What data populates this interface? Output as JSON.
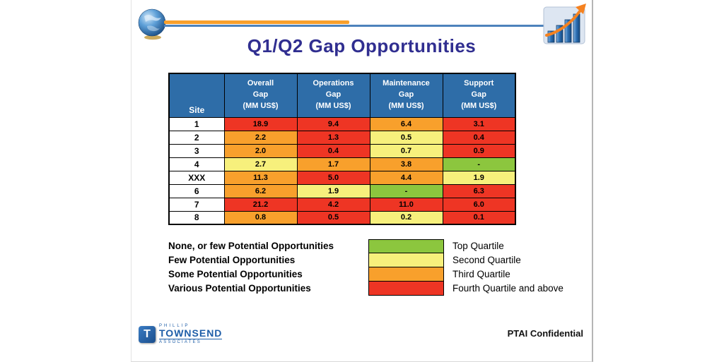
{
  "slide": {
    "title": "Q1/Q2 Gap Opportunities",
    "footer": {
      "confidential": "PTAI Confidential",
      "logo": {
        "letter": "T",
        "line1": "PHILLIP",
        "line2": "TOWNSEND",
        "line3": "ASSOCIATES"
      }
    }
  },
  "chart_data": {
    "type": "table",
    "title": "Q1/Q2 Gap Opportunities",
    "site_header": "Site",
    "columns": [
      "Overall\nGap\n(MM US$)",
      "Operations\nGap\n(MM US$)",
      "Maintenance\nGap\n(MM US$)",
      "Support\nGap\n(MM US$)"
    ],
    "rows": [
      {
        "site": "1",
        "cells": [
          {
            "value": "18.9",
            "color": "red"
          },
          {
            "value": "9.4",
            "color": "red"
          },
          {
            "value": "6.4",
            "color": "orange"
          },
          {
            "value": "3.1",
            "color": "red"
          }
        ]
      },
      {
        "site": "2",
        "cells": [
          {
            "value": "2.2",
            "color": "orange"
          },
          {
            "value": "1.3",
            "color": "red"
          },
          {
            "value": "0.5",
            "color": "yellow"
          },
          {
            "value": "0.4",
            "color": "red"
          }
        ]
      },
      {
        "site": "3",
        "cells": [
          {
            "value": "2.0",
            "color": "orange"
          },
          {
            "value": "0.4",
            "color": "red"
          },
          {
            "value": "0.7",
            "color": "yellow"
          },
          {
            "value": "0.9",
            "color": "red"
          }
        ]
      },
      {
        "site": "4",
        "cells": [
          {
            "value": "2.7",
            "color": "yellow"
          },
          {
            "value": "1.7",
            "color": "orange"
          },
          {
            "value": "3.8",
            "color": "orange"
          },
          {
            "value": "-",
            "color": "green"
          }
        ]
      },
      {
        "site": "XXX",
        "cells": [
          {
            "value": "11.3",
            "color": "orange"
          },
          {
            "value": "5.0",
            "color": "red"
          },
          {
            "value": "4.4",
            "color": "orange"
          },
          {
            "value": "1.9",
            "color": "yellow"
          }
        ]
      },
      {
        "site": "6",
        "cells": [
          {
            "value": "6.2",
            "color": "orange"
          },
          {
            "value": "1.9",
            "color": "yellow"
          },
          {
            "value": "-",
            "color": "green"
          },
          {
            "value": "6.3",
            "color": "red"
          }
        ]
      },
      {
        "site": "7",
        "cells": [
          {
            "value": "21.2",
            "color": "red"
          },
          {
            "value": "4.2",
            "color": "red"
          },
          {
            "value": "11.0",
            "color": "red"
          },
          {
            "value": "6.0",
            "color": "red"
          }
        ]
      },
      {
        "site": "8",
        "cells": [
          {
            "value": "0.8",
            "color": "orange"
          },
          {
            "value": "0.5",
            "color": "red"
          },
          {
            "value": "0.2",
            "color": "yellow"
          },
          {
            "value": "0.1",
            "color": "red"
          }
        ]
      }
    ]
  },
  "legend": [
    {
      "label": "None, or few Potential Opportunities",
      "color": "green",
      "quartile": "Top Quartile"
    },
    {
      "label": "Few Potential Opportunities",
      "color": "yellow",
      "quartile": "Second Quartile"
    },
    {
      "label": "Some Potential Opportunities",
      "color": "orange",
      "quartile": "Third Quartile"
    },
    {
      "label": "Various Potential Opportunities",
      "color": "red",
      "quartile": "Fourth Quartile and above"
    }
  ],
  "colors": {
    "red": "#EE3524",
    "orange": "#F8A02C",
    "yellow": "#F7F07C",
    "green": "#8CC63E",
    "header_blue": "#2E6DA8",
    "title_indigo": "#302E90",
    "logo_blue": "#1E5EA8"
  }
}
